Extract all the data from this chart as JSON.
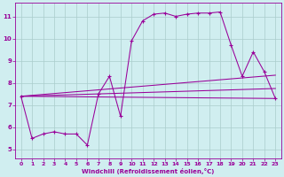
{
  "xlabel": "Windchill (Refroidissement éolien,°C)",
  "bg_color": "#d0eef0",
  "line_color": "#990099",
  "grid_color": "#aacccc",
  "xlim": [
    -0.5,
    23.5
  ],
  "ylim": [
    4.6,
    11.6
  ],
  "xticks": [
    0,
    1,
    2,
    3,
    4,
    5,
    6,
    7,
    8,
    9,
    10,
    11,
    12,
    13,
    14,
    15,
    16,
    17,
    18,
    19,
    20,
    21,
    22,
    23
  ],
  "yticks": [
    5,
    6,
    7,
    8,
    9,
    10,
    11
  ],
  "series": [
    [
      0,
      7.4
    ],
    [
      1,
      5.5
    ],
    [
      2,
      5.7
    ],
    [
      3,
      5.8
    ],
    [
      4,
      5.7
    ],
    [
      5,
      5.7
    ],
    [
      6,
      5.2
    ],
    [
      7,
      7.5
    ],
    [
      8,
      8.3
    ],
    [
      9,
      6.5
    ],
    [
      10,
      9.9
    ],
    [
      11,
      10.8
    ],
    [
      12,
      11.1
    ],
    [
      13,
      11.15
    ],
    [
      14,
      11.0
    ],
    [
      15,
      11.1
    ],
    [
      16,
      11.15
    ],
    [
      17,
      11.15
    ],
    [
      18,
      11.2
    ],
    [
      19,
      9.7
    ],
    [
      20,
      8.3
    ],
    [
      21,
      9.4
    ],
    [
      22,
      8.5
    ],
    [
      23,
      7.3
    ]
  ],
  "line_straight": [
    [
      0,
      7.4
    ],
    [
      23,
      7.3
    ]
  ],
  "line_upper": [
    [
      0,
      7.4
    ],
    [
      23,
      8.35
    ]
  ],
  "line_lower": [
    [
      0,
      7.4
    ],
    [
      23,
      7.3
    ]
  ],
  "line_mid": [
    [
      0,
      7.4
    ],
    [
      23,
      7.75
    ]
  ]
}
